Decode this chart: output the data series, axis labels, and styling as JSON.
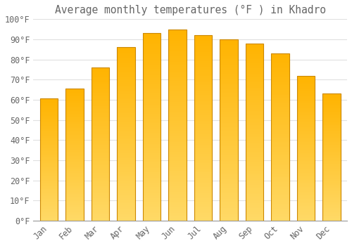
{
  "title": "Average monthly temperatures (°F ) in Khadro",
  "months": [
    "Jan",
    "Feb",
    "Mar",
    "Apr",
    "May",
    "Jun",
    "Jul",
    "Aug",
    "Sep",
    "Oct",
    "Nov",
    "Dec"
  ],
  "values": [
    60.5,
    65.5,
    76.0,
    86.0,
    93.0,
    95.0,
    92.0,
    90.0,
    88.0,
    83.0,
    72.0,
    63.0
  ],
  "bar_color_top": "#FFB300",
  "bar_color_bottom": "#FFD966",
  "bar_edge_color": "#CC8800",
  "background_color": "#FFFFFF",
  "grid_color": "#E0E0E0",
  "text_color": "#666666",
  "ylim": [
    0,
    100
  ],
  "title_fontsize": 10.5,
  "tick_fontsize": 8.5
}
